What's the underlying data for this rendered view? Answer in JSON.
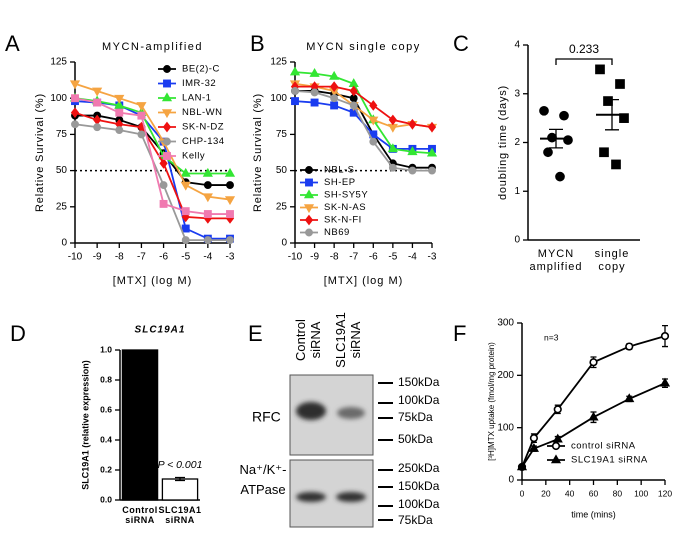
{
  "chart_data": [
    {
      "label": "A",
      "type": "line",
      "title": "MYCN-amplified",
      "x_label": "[MTX] (log M)",
      "y_label": "Relative Survival (%)",
      "x": [
        -10,
        -9,
        -8,
        -7,
        -6,
        -5,
        -4,
        -3
      ],
      "xlim": [
        -10,
        -3
      ],
      "xticks": [
        -10,
        -9,
        -8,
        -7,
        -6,
        -5,
        -4,
        -3
      ],
      "ylim": [
        0,
        125
      ],
      "yticks": [
        0,
        25,
        50,
        75,
        100,
        125
      ],
      "reference_line": 50,
      "legend": "upper right",
      "series": [
        {
          "name": "BE(2)-C",
          "color": "#000000",
          "marker": "circle",
          "values": [
            88,
            88,
            85,
            80,
            62,
            42,
            40,
            40
          ]
        },
        {
          "name": "IMR-32",
          "color": "#1a3cf0",
          "marker": "square",
          "values": [
            98,
            97,
            95,
            88,
            70,
            10,
            3,
            3
          ]
        },
        {
          "name": "LAN-1",
          "color": "#33e633",
          "marker": "triangle",
          "values": [
            100,
            98,
            95,
            90,
            60,
            48,
            48,
            48
          ]
        },
        {
          "name": "NBL-WN",
          "color": "#f5a442",
          "marker": "triangle-down",
          "values": [
            110,
            105,
            100,
            95,
            70,
            40,
            32,
            30
          ]
        },
        {
          "name": "SK-N-DZ",
          "color": "#ee1111",
          "marker": "diamond",
          "values": [
            90,
            85,
            82,
            80,
            55,
            18,
            17,
            17
          ]
        },
        {
          "name": "CHP-134",
          "color": "#999999",
          "marker": "circle",
          "values": [
            82,
            80,
            78,
            75,
            40,
            2,
            2,
            2
          ]
        },
        {
          "name": "Kelly",
          "color": "#f07ab0",
          "marker": "square",
          "values": [
            100,
            97,
            90,
            88,
            27,
            22,
            20,
            20
          ]
        }
      ]
    },
    {
      "label": "B",
      "type": "line",
      "title": "MYCN single copy",
      "x_label": "[MTX] (log M)",
      "y_label": "Relative Survival (%)",
      "x": [
        -10,
        -9,
        -8,
        -7,
        -6,
        -5,
        -4,
        -3
      ],
      "xlim": [
        -10,
        -3
      ],
      "xticks": [
        -10,
        -9,
        -8,
        -7,
        -6,
        -5,
        -4,
        -3
      ],
      "ylim": [
        0,
        125
      ],
      "yticks": [
        0,
        25,
        50,
        75,
        100,
        125
      ],
      "reference_line": 50,
      "legend": "lower left",
      "series": [
        {
          "name": "NBL-S",
          "color": "#000000",
          "marker": "circle",
          "values": [
            105,
            105,
            103,
            100,
            75,
            55,
            52,
            52
          ]
        },
        {
          "name": "SH-EP",
          "color": "#1a3cf0",
          "marker": "square",
          "values": [
            98,
            97,
            95,
            90,
            75,
            65,
            65,
            65
          ]
        },
        {
          "name": "SH-SY5Y",
          "color": "#33e633",
          "marker": "triangle",
          "values": [
            118,
            117,
            115,
            110,
            85,
            65,
            63,
            62
          ]
        },
        {
          "name": "SK-N-AS",
          "color": "#f5a442",
          "marker": "triangle-down",
          "values": [
            110,
            108,
            105,
            95,
            85,
            80,
            82,
            80
          ]
        },
        {
          "name": "SK-N-FI",
          "color": "#ee1111",
          "marker": "diamond",
          "values": [
            108,
            108,
            108,
            105,
            95,
            85,
            82,
            80
          ]
        },
        {
          "name": "NB69",
          "color": "#999999",
          "marker": "circle",
          "values": [
            105,
            104,
            100,
            95,
            70,
            52,
            50,
            50
          ]
        }
      ]
    },
    {
      "label": "C",
      "type": "strip",
      "y_label": "doubling time (days)",
      "annotation": "0.233",
      "categories": [
        "MYCN amplified",
        "single copy"
      ],
      "markers": [
        "circle",
        "square"
      ],
      "color": "#000000",
      "values": [
        [
          2.65,
          2.55,
          2.1,
          2.05,
          1.8,
          1.3
        ],
        [
          3.5,
          3.2,
          2.85,
          2.5,
          1.8,
          1.55
        ]
      ],
      "means": [
        2.08,
        2.57
      ],
      "sems": [
        0.19,
        0.31
      ],
      "ylim": [
        0,
        4
      ],
      "yticks": [
        0,
        1,
        2,
        3,
        4
      ]
    },
    {
      "label": "D",
      "type": "bar",
      "title": "SLC19A1",
      "y_label": "SLC19A1 (relative expression)",
      "annotation": "P < 0.001",
      "categories": [
        "Control siRNA",
        "SLC19A1 siRNA"
      ],
      "values": [
        1.0,
        0.14
      ],
      "errors": [
        0,
        0.01
      ],
      "colors": [
        "#000000",
        "#ffffff"
      ],
      "ylim": [
        0,
        1.0
      ],
      "yticks": [
        {
          "value": 0,
          "label": "0.0"
        },
        {
          "value": 0.2,
          "label": "0.2"
        },
        {
          "value": 0.4,
          "label": "0.4"
        },
        {
          "value": 0.6,
          "label": "0.6"
        },
        {
          "value": 0.8,
          "label": "0.8"
        },
        {
          "value": 1.0,
          "label": "1.0"
        }
      ]
    },
    {
      "label": "F",
      "type": "line",
      "x_label": "time (mins)",
      "y_label": "[³H]MTX uptake (fmol/mg protein)",
      "annotation": "n=3",
      "x": [
        0,
        10,
        30,
        60,
        90,
        120
      ],
      "xlim": [
        0,
        120
      ],
      "xticks": [
        0,
        20,
        40,
        60,
        80,
        100,
        120
      ],
      "ylim": [
        0,
        300
      ],
      "yticks": [
        0,
        100,
        200,
        300
      ],
      "legend": "lower right",
      "series": [
        {
          "name": "control siRNA",
          "color": "#000000",
          "marker": "open-circle",
          "values": [
            25,
            80,
            135,
            225,
            255,
            275
          ],
          "errors": [
            3,
            8,
            8,
            10,
            5,
            20
          ]
        },
        {
          "name": "SLC19A1 siRNA",
          "color": "#000000",
          "marker": "triangle",
          "values": [
            25,
            60,
            78,
            120,
            155,
            185
          ],
          "errors": [
            3,
            5,
            5,
            10,
            5,
            8
          ]
        }
      ]
    }
  ],
  "blot": {
    "label": "E",
    "lanes": [
      "Control siRNA",
      "SLC19A1 siRNA"
    ],
    "rows": [
      {
        "name": "RFC",
        "markers": [
          "150kDa",
          "100kDa",
          "75kDa",
          "50kDa"
        ]
      },
      {
        "name": "Na⁺/K⁺-ATPase",
        "markers": [
          "250kDa",
          "150kDa",
          "100kDa",
          "75kDa"
        ]
      }
    ]
  }
}
